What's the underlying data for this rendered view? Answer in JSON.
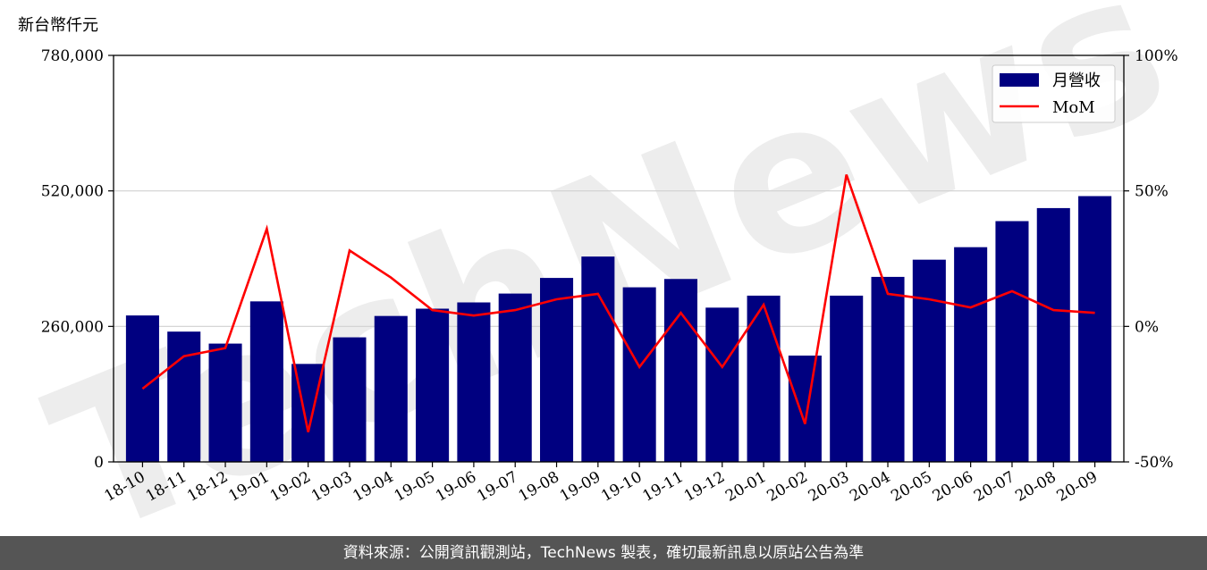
{
  "unit_label": "新台幣仟元",
  "footer_text": "資料來源：公開資訊觀測站，TechNews 製表，確切最新訊息以原站公告為準",
  "watermark_text": "TechNews",
  "colors": {
    "bar": "#000080",
    "line": "#ff0000",
    "grid": "#d0d0d0",
    "footer_bg": "#555555"
  },
  "chart_data": {
    "type": "bar",
    "categories": [
      "18-10",
      "18-11",
      "18-12",
      "19-01",
      "19-02",
      "19-03",
      "19-04",
      "19-05",
      "19-06",
      "19-07",
      "19-08",
      "19-09",
      "19-10",
      "19-11",
      "19-12",
      "20-01",
      "20-02",
      "20-03",
      "20-04",
      "20-05",
      "20-06",
      "20-07",
      "20-08",
      "20-09"
    ],
    "series": [
      {
        "name": "月營收",
        "type": "bar",
        "axis": "left",
        "values": [
          281000,
          250000,
          227000,
          308000,
          188000,
          239000,
          280000,
          294000,
          306000,
          323000,
          353000,
          394000,
          335000,
          351000,
          296000,
          319000,
          204000,
          319000,
          355000,
          388000,
          412000,
          462000,
          487000,
          510000
        ]
      },
      {
        "name": "MoM",
        "type": "line",
        "axis": "right",
        "unit": "%",
        "values": [
          -23,
          -11,
          -8,
          36,
          -39,
          28,
          18,
          6,
          4,
          6,
          10,
          12,
          -15,
          5,
          -15,
          8,
          -36,
          56,
          12,
          10,
          7,
          13,
          6,
          5
        ]
      }
    ],
    "y_left": {
      "ticks": [
        "0",
        "260,000",
        "520,000",
        "780,000"
      ],
      "range": [
        0,
        780000
      ]
    },
    "y_right": {
      "ticks": [
        "-50%",
        "0%",
        "50%",
        "100%"
      ],
      "range": [
        -50,
        100
      ]
    },
    "grid": "horizontal",
    "legend_position": "top-right"
  }
}
